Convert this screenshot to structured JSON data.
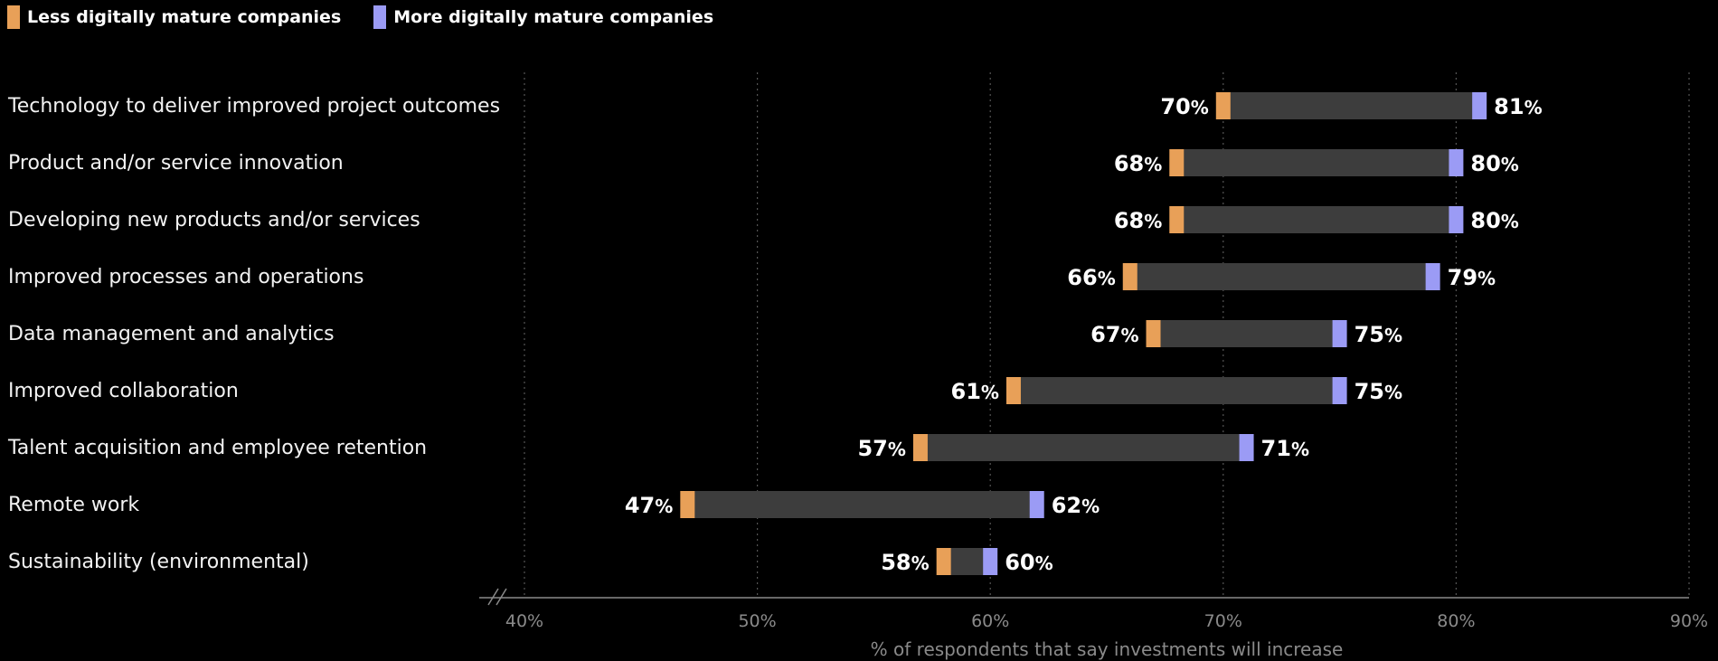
{
  "chart_data": {
    "type": "dumbbell",
    "xlabel": "% of respondents that say investments will increase",
    "xlim": [
      40,
      90
    ],
    "x_ticks": [
      40,
      50,
      60,
      70,
      80,
      90
    ],
    "x_tick_labels": [
      "40%",
      "50%",
      "60%",
      "70%",
      "80%",
      "90%"
    ],
    "axis_break": true,
    "grid": true,
    "legend_position": "top-left",
    "categories": [
      "Technology to deliver improved project outcomes",
      "Product and/or service innovation",
      "Developing new products and/or services",
      "Improved processes and operations",
      "Data management and analytics",
      "Improved collaboration",
      "Talent acquisition and employee retention",
      "Remote work",
      "Sustainability (environmental)"
    ],
    "series": [
      {
        "name": "Less digitally mature companies",
        "color": "#E8A058",
        "values": [
          70,
          68,
          68,
          66,
          67,
          61,
          57,
          47,
          58
        ]
      },
      {
        "name": "More digitally mature companies",
        "color": "#9B9BF5",
        "values": [
          81,
          80,
          80,
          79,
          75,
          75,
          71,
          62,
          60
        ]
      }
    ],
    "range_bar_color": "#3d3d3d",
    "gridline_color": "#555555",
    "axis_color": "#8a8a8a"
  }
}
